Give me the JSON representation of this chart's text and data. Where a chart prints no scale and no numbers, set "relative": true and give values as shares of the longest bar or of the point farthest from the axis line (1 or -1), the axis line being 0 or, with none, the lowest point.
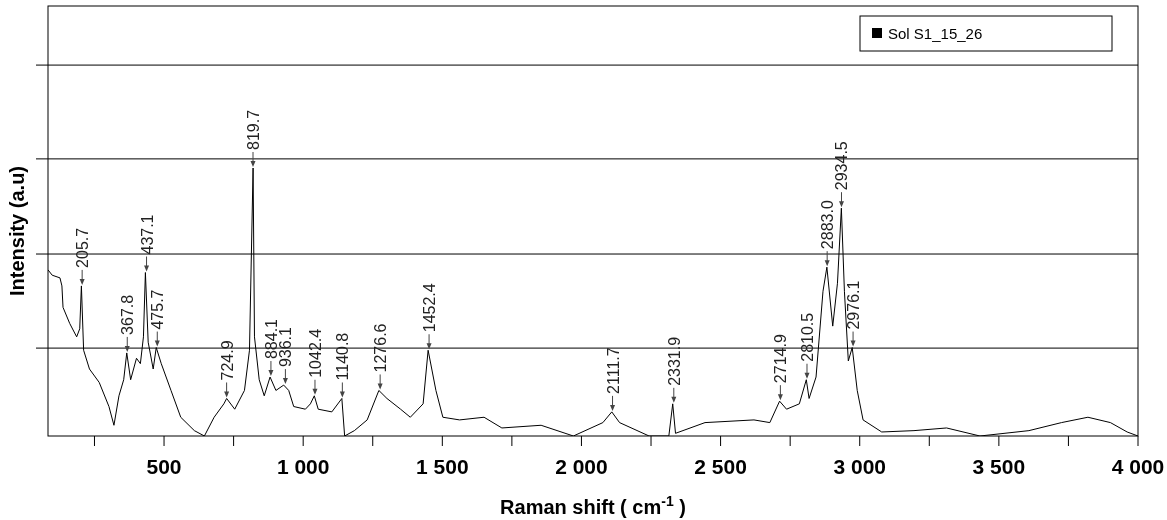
{
  "chart_data": {
    "type": "line",
    "relative": true,
    "xlabel": "Raman shift ( cm$^{-1}$ )",
    "ylabel": "Intensity (a.u)",
    "xlim": [
      83,
      4000
    ],
    "xticks": [
      {
        "value": 250,
        "label": null
      },
      500,
      {
        "value": 750,
        "label": null
      },
      {
        "value": 1000,
        "label": "1 000"
      },
      {
        "value": 1250,
        "label": null
      },
      {
        "value": 1500,
        "label": "1 500"
      },
      {
        "value": 1750,
        "label": null
      },
      {
        "value": 2000,
        "label": "2 000"
      },
      {
        "value": 2250,
        "label": null
      },
      {
        "value": 2500,
        "label": "2 500"
      },
      {
        "value": 2750,
        "label": null
      },
      {
        "value": 3000,
        "label": "3 000"
      },
      {
        "value": 3250,
        "label": null
      },
      {
        "value": 3500,
        "label": "3 500"
      },
      {
        "value": 3750,
        "label": null
      },
      {
        "value": 4000,
        "label": "4 000"
      }
    ],
    "ref_lines": [
      {
        "axis": "y",
        "value": 0.328
      },
      {
        "axis": "y",
        "value": 0.679
      },
      {
        "axis": "y",
        "value": 1.034
      },
      {
        "axis": "y",
        "value": 1.384
      }
    ],
    "legend": "top right",
    "marker": "none",
    "line_style": "solid",
    "series": [
      {
        "name": "Sol S1_15_26",
        "color": "#000000",
        "x": [
          83,
          98,
          126,
          133,
          137,
          161,
          186,
          197,
          203,
          211,
          232,
          267,
          302,
          320,
          338,
          355,
          366,
          380,
          401,
          415,
          426,
          433,
          443,
          461,
          472,
          490,
          525,
          560,
          609,
          645,
          680,
          715,
          725,
          754,
          789,
          807,
          820,
          825,
          842,
          860,
          881,
          902,
          930,
          948,
          966,
          1008,
          1026,
          1040,
          1054,
          1103,
          1139,
          1149,
          1184,
          1230,
          1272,
          1301,
          1350,
          1385,
          1431,
          1449,
          1477,
          1502,
          1562,
          1650,
          1714,
          1855,
          1971,
          2077,
          2109,
          2137,
          2243,
          2314,
          2328,
          2338,
          2444,
          2620,
          2677,
          2712,
          2737,
          2783,
          2808,
          2818,
          2843,
          2868,
          2882,
          2903,
          2920,
          2934,
          2945,
          2959,
          2973,
          2991,
          3012,
          3079,
          3195,
          3312,
          3432,
          3608,
          3725,
          3820,
          3901,
          3961,
          4000
        ],
        "values": [
          0.62,
          0.6,
          0.59,
          0.56,
          0.48,
          0.42,
          0.37,
          0.4,
          0.56,
          0.32,
          0.25,
          0.2,
          0.11,
          0.04,
          0.15,
          0.21,
          0.31,
          0.21,
          0.29,
          0.27,
          0.37,
          0.61,
          0.35,
          0.25,
          0.33,
          0.27,
          0.17,
          0.07,
          0.02,
          0,
          0.07,
          0.12,
          0.14,
          0.1,
          0.17,
          0.32,
          1,
          0.37,
          0.21,
          0.15,
          0.22,
          0.17,
          0.19,
          0.17,
          0.11,
          0.1,
          0.12,
          0.15,
          0.1,
          0.09,
          0.14,
          0,
          0.02,
          0.06,
          0.17,
          0.14,
          0.1,
          0.07,
          0.12,
          0.32,
          0.17,
          0.07,
          0.06,
          0.07,
          0.03,
          0.04,
          0,
          0.05,
          0.09,
          0.05,
          0,
          0,
          0.12,
          0.01,
          0.05,
          0.06,
          0.05,
          0.13,
          0.1,
          0.12,
          0.21,
          0.14,
          0.22,
          0.54,
          0.63,
          0.41,
          0.57,
          0.85,
          0.54,
          0.28,
          0.33,
          0.17,
          0.06,
          0.015,
          0.02,
          0.03,
          0,
          0.02,
          0.05,
          0.07,
          0.05,
          0.015,
          0
        ]
      }
    ],
    "annotations": [
      {
        "text": "205.7",
        "x": 205.7,
        "y": 0.56
      },
      {
        "text": "367.8",
        "x": 367.8,
        "y": 0.31
      },
      {
        "text": "437.1",
        "x": 437.1,
        "y": 0.61
      },
      {
        "text": "475.7",
        "x": 475.7,
        "y": 0.33
      },
      {
        "text": "724.9",
        "x": 724.9,
        "y": 0.14
      },
      {
        "text": "819.7",
        "x": 819.7,
        "y": 1
      },
      {
        "text": "884.1",
        "x": 884.1,
        "y": 0.22
      },
      {
        "text": "936.1",
        "x": 936.1,
        "y": 0.19
      },
      {
        "text": "1042.4",
        "x": 1042.4,
        "y": 0.15
      },
      {
        "text": "1140.8",
        "x": 1140.8,
        "y": 0.14
      },
      {
        "text": "1276.6",
        "x": 1276.6,
        "y": 0.17
      },
      {
        "text": "1452.4",
        "x": 1452.4,
        "y": 0.32
      },
      {
        "text": "2111.7",
        "x": 2111.7,
        "y": 0.09
      },
      {
        "text": "2331.9",
        "x": 2331.9,
        "y": 0.12
      },
      {
        "text": "2714.9",
        "x": 2714.9,
        "y": 0.13
      },
      {
        "text": "2810.5",
        "x": 2810.5,
        "y": 0.21
      },
      {
        "text": "2883.0",
        "x": 2883.0,
        "y": 0.63
      },
      {
        "text": "2934.5",
        "x": 2934.5,
        "y": 0.85
      },
      {
        "text": "2976.1",
        "x": 2976.1,
        "y": 0.33
      }
    ]
  }
}
